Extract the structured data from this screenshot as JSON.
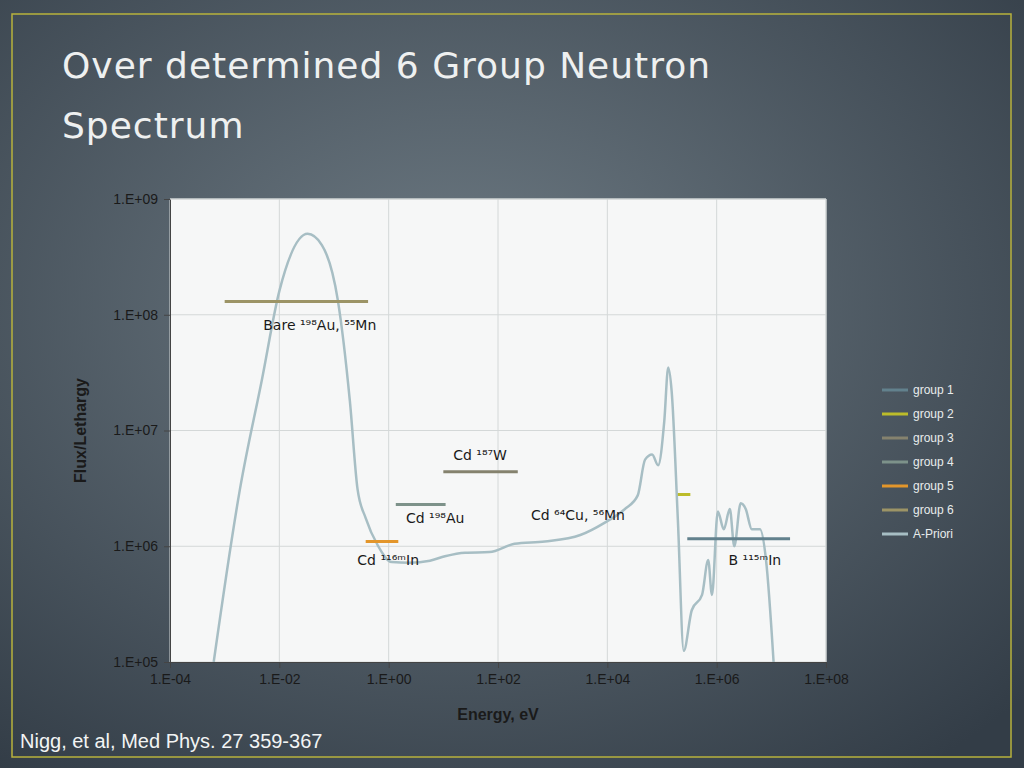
{
  "chart_data": {
    "type": "line",
    "title": "Over determined 6 Group Neutron Spectrum",
    "x_label": "Energy, eV",
    "y_label": "Flux/Lethargy",
    "footnote": "Nigg, et al, Med Phys. 27 359-367",
    "log": true,
    "grid": true,
    "legend": "right",
    "xlim": [
      0.0001,
      100000000
    ],
    "ylim": [
      100000,
      1000000000
    ],
    "xticks": [
      {
        "value": 0.0001,
        "label": "1.E-04"
      },
      {
        "value": 0.01,
        "label": "1.E-02"
      },
      {
        "value": 1,
        "label": "1.E+00"
      },
      {
        "value": 100,
        "label": "1.E+02"
      },
      {
        "value": 10000,
        "label": "1.E+04"
      },
      {
        "value": 1000000,
        "label": "1.E+06"
      },
      {
        "value": 100000000,
        "label": "1.E+08"
      }
    ],
    "yticks": [
      {
        "value": 100000,
        "label": "1.E+05"
      },
      {
        "value": 1000000,
        "label": "1.E+06"
      },
      {
        "value": 10000000,
        "label": "1.E+07"
      },
      {
        "value": 100000000,
        "label": "1.E+08"
      },
      {
        "value": 1000000000,
        "label": "1.E+09"
      }
    ],
    "series": [
      {
        "name": "group 1",
        "color": "#62818d",
        "x": [
          290000,
          22000000
        ],
        "values": [
          1160000,
          1160000
        ]
      },
      {
        "name": "group 2",
        "color": "#bcbc2a",
        "x": [
          195000,
          330000
        ],
        "values": [
          2800000,
          2800000
        ]
      },
      {
        "name": "group 3",
        "color": "#85826e",
        "x": [
          10,
          230
        ],
        "values": [
          4400000,
          4400000
        ]
      },
      {
        "name": "group 4",
        "color": "#7d928a",
        "x": [
          1.35,
          11
        ],
        "values": [
          2300000,
          2300000
        ]
      },
      {
        "name": "group 5",
        "color": "#e3962b",
        "x": [
          0.38,
          1.5
        ],
        "values": [
          1100000,
          1100000
        ]
      },
      {
        "name": "group 6",
        "color": "#9c9466",
        "x": [
          0.001,
          0.42
        ],
        "values": [
          130000000,
          130000000
        ]
      },
      {
        "name": "A-Priori",
        "color": "#a7bec4",
        "x": [
          0.00063,
          0.0019,
          0.0048,
          0.01,
          0.033,
          0.06,
          0.117,
          0.195,
          0.27,
          0.38,
          0.63,
          1.14,
          2.4,
          5.7,
          10.7,
          25,
          70,
          200,
          720,
          3200,
          9000,
          21000,
          36000,
          49000,
          66000,
          85000,
          110000,
          130000,
          150000,
          195000,
          250000,
          350000,
          540000,
          700000,
          820000,
          1050000,
          1350000,
          1740000,
          2100000,
          2750000,
          3400000,
          4400000,
          6200000,
          8000000,
          11000000
        ],
        "values": [
          100000,
          3100000,
          27500000,
          160000000,
          500000000,
          400000000,
          135000000,
          18000000,
          3100000,
          1750000,
          1020000,
          730000,
          720000,
          750000,
          820000,
          880000,
          890000,
          1050000,
          1100000,
          1250000,
          1600000,
          2100000,
          2750000,
          5600000,
          6200000,
          5000000,
          12000000,
          35000000,
          22000000,
          1700000,
          125000,
          280000,
          380000,
          760000,
          380000,
          2000000,
          1400000,
          2100000,
          1000000,
          2350000,
          2100000,
          1400000,
          1400000,
          760000,
          100000
        ]
      }
    ],
    "annotations": [
      {
        "text": "Bare ¹⁹⁸Au, ⁵⁵Mn",
        "x": 0.055,
        "y": 74000000
      },
      {
        "text": "Cd ¹⁸⁷W",
        "x": 47,
        "y": 5600000
      },
      {
        "text": "Cd ¹⁹⁸Au",
        "x": 7.1,
        "y": 1600000
      },
      {
        "text": "Cd ⁶⁴Cu, ⁵⁶Mn",
        "x": 2900,
        "y": 1700000
      },
      {
        "text": "Cd ¹¹⁶ᵐIn",
        "x": 0.98,
        "y": 690000
      },
      {
        "text": "B ¹¹⁵ᵐIn",
        "x": 5000000,
        "y": 690000
      }
    ]
  }
}
